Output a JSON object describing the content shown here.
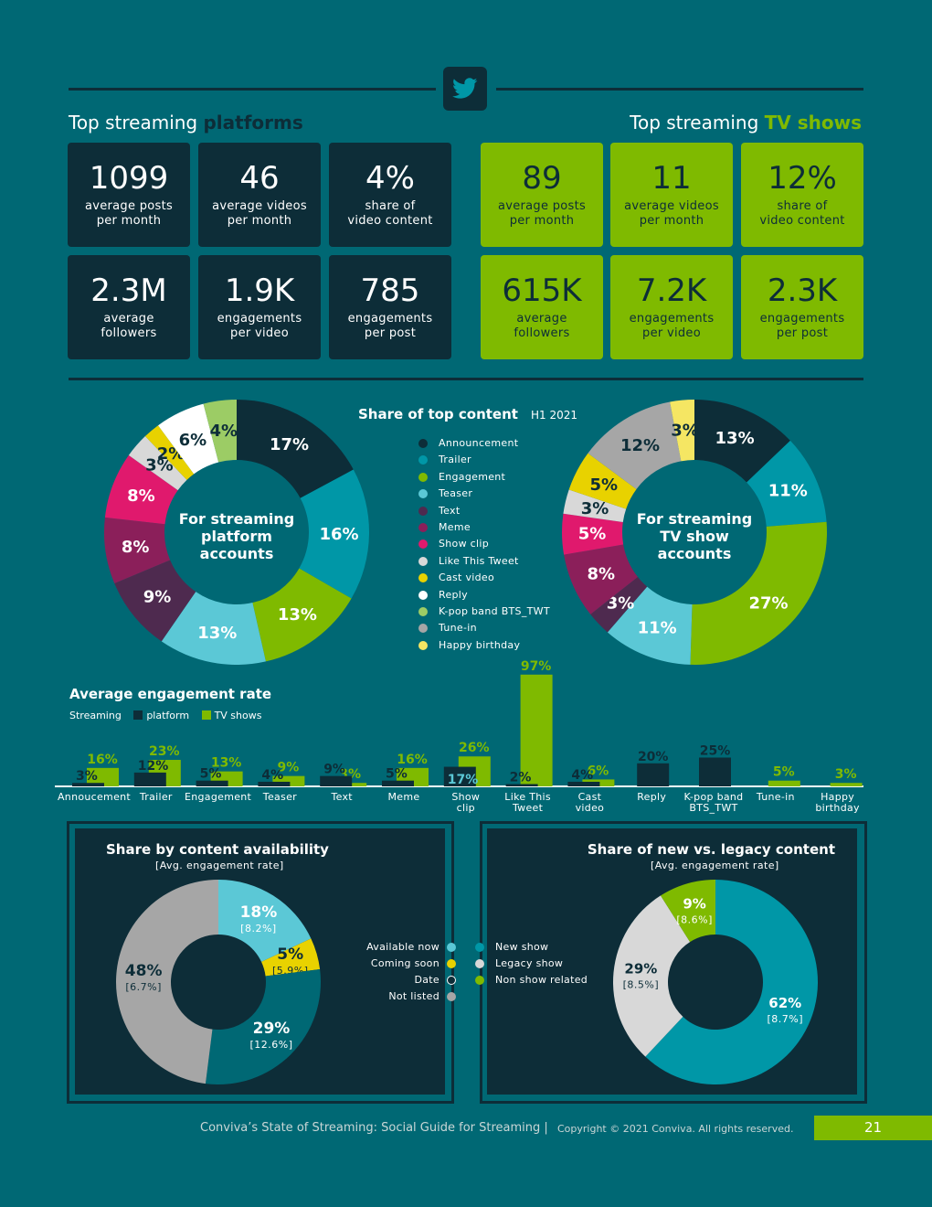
{
  "header": {
    "icon": "twitter-bird-icon",
    "platforms_title_prefix": "Top streaming ",
    "platforms_title_bold": "platforms",
    "tv_title_prefix": "Top streaming ",
    "tv_title_bold": "TV shows"
  },
  "platform_cards": [
    {
      "value": "1099",
      "label1": "average posts",
      "label2": "per month"
    },
    {
      "value": "46",
      "label1": "average videos",
      "label2": "per month"
    },
    {
      "value": "4%",
      "label1": "share of",
      "label2": "video content"
    },
    {
      "value": "2.3M",
      "label1": "average",
      "label2": "followers"
    },
    {
      "value": "1.9K",
      "label1": "engagements",
      "label2": "per video"
    },
    {
      "value": "785",
      "label1": "engagements",
      "label2": "per post"
    }
  ],
  "tv_cards": [
    {
      "value": "89",
      "label1": "average posts",
      "label2": "per month"
    },
    {
      "value": "11",
      "label1": "average videos",
      "label2": "per month"
    },
    {
      "value": "12%",
      "label1": "share of",
      "label2": "video content"
    },
    {
      "value": "615K",
      "label1": "average",
      "label2": "followers"
    },
    {
      "value": "7.2K",
      "label1": "engagements",
      "label2": "per video"
    },
    {
      "value": "2.3K",
      "label1": "engagements",
      "label2": "per post"
    }
  ],
  "share_section": {
    "title": "Share of top content",
    "period": "H1 2021",
    "legend": [
      {
        "label": "Announcement",
        "color": "#0d2d38"
      },
      {
        "label": "Trailer",
        "color": "#0097a7"
      },
      {
        "label": "Engagement",
        "color": "#7fba00"
      },
      {
        "label": "Teaser",
        "color": "#5bc8d6"
      },
      {
        "label": "Text",
        "color": "#4e2a4f"
      },
      {
        "label": "Meme",
        "color": "#8b1f5a"
      },
      {
        "label": "Show clip",
        "color": "#e0196d"
      },
      {
        "label": "Like This Tweet",
        "color": "#d8d8d8"
      },
      {
        "label": "Cast video",
        "color": "#e8d200"
      },
      {
        "label": "Reply",
        "color": "#ffffff"
      },
      {
        "label": "K-pop band BTS_TWT",
        "color": "#9ccc65"
      },
      {
        "label": "Tune-in",
        "color": "#a6a6a6"
      },
      {
        "label": "Happy birthday",
        "color": "#f5e663"
      }
    ],
    "platform_center": [
      "For streaming",
      "platform",
      "accounts"
    ],
    "tv_center": [
      "For streaming",
      "TV show",
      "accounts"
    ]
  },
  "chart_data": [
    {
      "type": "pie",
      "title": "Share of top content",
      "subtitle": "For streaming platform accounts",
      "slices": [
        {
          "label": "Announcement",
          "value": 17,
          "text": "17%",
          "color": "#0d2d38"
        },
        {
          "label": "Trailer",
          "value": 16,
          "text": "16%",
          "color": "#0097a7"
        },
        {
          "label": "Engagement",
          "value": 13,
          "text": "13%",
          "color": "#7fba00"
        },
        {
          "label": "Teaser",
          "value": 13,
          "text": "13%",
          "color": "#5bc8d6"
        },
        {
          "label": "Text",
          "value": 9,
          "text": "9%",
          "color": "#4e2a4f"
        },
        {
          "label": "Meme",
          "value": 8,
          "text": "8%",
          "color": "#8b1f5a"
        },
        {
          "label": "Show clip",
          "value": 8,
          "text": "8%",
          "color": "#e0196d"
        },
        {
          "label": "Like This Tweet",
          "value": 3,
          "text": "3%",
          "color": "#d8d8d8"
        },
        {
          "label": "Cast video",
          "value": 2,
          "text": "2%",
          "color": "#e8d200"
        },
        {
          "label": "Reply",
          "value": 6,
          "text": "6%",
          "color": "#ffffff"
        },
        {
          "label": "K-pop band BTS_TWT",
          "value": 4,
          "text": "4%",
          "color": "#9ccc65"
        }
      ]
    },
    {
      "type": "pie",
      "title": "Share of top content",
      "subtitle": "For streaming TV show accounts",
      "slices": [
        {
          "label": "Announcement",
          "value": 13,
          "text": "13%",
          "color": "#0d2d38"
        },
        {
          "label": "Trailer",
          "value": 11,
          "text": "11%",
          "color": "#0097a7"
        },
        {
          "label": "Engagement",
          "value": 27,
          "text": "27%",
          "color": "#7fba00"
        },
        {
          "label": "Teaser",
          "value": 11,
          "text": "11%",
          "color": "#5bc8d6"
        },
        {
          "label": "Text",
          "value": 3,
          "text": "3%",
          "color": "#4e2a4f"
        },
        {
          "label": "Meme",
          "value": 8,
          "text": "8%",
          "color": "#8b1f5a"
        },
        {
          "label": "Show clip",
          "value": 5,
          "text": "5%",
          "color": "#e0196d"
        },
        {
          "label": "Like This Tweet",
          "value": 3,
          "text": "3%",
          "color": "#d8d8d8"
        },
        {
          "label": "Cast video",
          "value": 5,
          "text": "5%",
          "color": "#e8d200"
        },
        {
          "label": "Tune-in",
          "value": 12,
          "text": "12%",
          "color": "#a6a6a6"
        },
        {
          "label": "Happy birthday",
          "value": 3,
          "text": "3%",
          "color": "#f5e663"
        }
      ]
    },
    {
      "type": "bar",
      "title": "Average engagement rate",
      "legend_prefix": "Streaming",
      "categories": [
        [
          "Annoucement"
        ],
        [
          "Trailer"
        ],
        [
          "Engagement"
        ],
        [
          "Teaser"
        ],
        [
          "Text"
        ],
        [
          "Meme"
        ],
        [
          "Show",
          "clip"
        ],
        [
          "Like This",
          "Tweet"
        ],
        [
          "Cast",
          "video"
        ],
        [
          "Reply"
        ],
        [
          "K-pop band",
          "BTS_TWT"
        ],
        [
          "Tune-in"
        ],
        [
          "Happy",
          "birthday"
        ]
      ],
      "series": [
        {
          "name": "platform",
          "color": "#0d2d38",
          "values": [
            3,
            12,
            5,
            4,
            9,
            5,
            17,
            2,
            4,
            20,
            25,
            null,
            null
          ],
          "labels": [
            "3%",
            "12%",
            "5%",
            "4%",
            "9%",
            "5%",
            "17%",
            "2%",
            "4%",
            "20%",
            "25%",
            "",
            ""
          ]
        },
        {
          "name": "TV shows",
          "color": "#7fba00",
          "values": [
            16,
            23,
            13,
            9,
            3,
            16,
            26,
            97,
            6,
            null,
            null,
            5,
            3
          ],
          "labels": [
            "16%",
            "23%",
            "13%",
            "9%",
            "3%",
            "16%",
            "26%",
            "97%",
            "6%",
            "",
            "",
            "5%",
            "3%"
          ]
        }
      ],
      "ylim": [
        0,
        100
      ]
    },
    {
      "type": "pie",
      "title": "Share by content availability",
      "subtitle": "[Avg. engagement rate]",
      "slices": [
        {
          "label": "Available now",
          "value": 18,
          "text": "18%",
          "rate": "[8.2%]",
          "color": "#5bc8d6"
        },
        {
          "label": "Coming soon",
          "value": 5,
          "text": "5%",
          "rate": "[5.9%]",
          "color": "#e8d200"
        },
        {
          "label": "Date",
          "value": 29,
          "text": "29%",
          "rate": "[12.6%]",
          "color": "#006874"
        },
        {
          "label": "Not listed",
          "value": 48,
          "text": "48%",
          "rate": "[6.7%]",
          "color": "#a6a6a6"
        }
      ]
    },
    {
      "type": "pie",
      "title": "Share of new vs. legacy content",
      "subtitle": "[Avg. engagement rate]",
      "slices": [
        {
          "label": "New show",
          "value": 62,
          "text": "62%",
          "rate": "[8.7%]",
          "color": "#0097a7"
        },
        {
          "label": "Legacy show",
          "value": 29,
          "text": "29%",
          "rate": "[8.5%]",
          "color": "#d8d8d8"
        },
        {
          "label": "Non show related",
          "value": 9,
          "text": "9%",
          "rate": "[8.6%]",
          "color": "#7fba00"
        }
      ]
    }
  ],
  "footer": {
    "title": "Conviva’s State of Streaming: Social Guide for Streaming |",
    "copyright": "Copyright © 2021 Conviva. All rights reserved.",
    "page": "21"
  }
}
